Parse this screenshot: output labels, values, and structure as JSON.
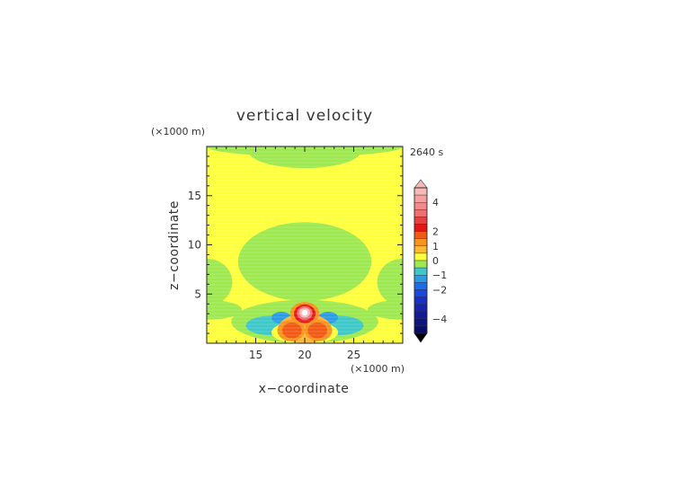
{
  "chart_data": {
    "type": "heatmap",
    "title": "vertical velocity",
    "time_label": "2640 s",
    "xlabel": "x−coordinate",
    "ylabel": "z−coordinate",
    "x_unit": "(×1000 m)",
    "y_unit": "(×1000 m)",
    "xlim": [
      10,
      30
    ],
    "ylim": [
      0,
      20
    ],
    "x_ticks": [
      15,
      20,
      25
    ],
    "y_ticks": [
      5,
      10,
      15
    ],
    "colorbar": {
      "ticks": [
        {
          "value": 4,
          "label": "4"
        },
        {
          "value": 2,
          "label": "2"
        },
        {
          "value": 1,
          "label": "1"
        },
        {
          "value": 0,
          "label": "0"
        },
        {
          "value": -1,
          "label": "−1"
        },
        {
          "value": -2,
          "label": "−2"
        },
        {
          "value": -4,
          "label": "−4"
        }
      ],
      "levels": [
        {
          "lo": 4.5,
          "hi": 5.0,
          "color": "#f7b8b8"
        },
        {
          "lo": 4.0,
          "hi": 4.5,
          "color": "#f4a0a0"
        },
        {
          "lo": 3.5,
          "hi": 4.0,
          "color": "#f28a8a"
        },
        {
          "lo": 3.0,
          "hi": 3.5,
          "color": "#ef7070"
        },
        {
          "lo": 2.5,
          "hi": 3.0,
          "color": "#e84040"
        },
        {
          "lo": 2.0,
          "hi": 2.5,
          "color": "#e21818"
        },
        {
          "lo": 1.5,
          "hi": 2.0,
          "color": "#f05a14"
        },
        {
          "lo": 1.0,
          "hi": 1.5,
          "color": "#f7931e"
        },
        {
          "lo": 0.5,
          "hi": 1.0,
          "color": "#fbb832"
        },
        {
          "lo": 0.0,
          "hi": 0.5,
          "color": "#ffff3c"
        },
        {
          "lo": -0.5,
          "hi": 0.0,
          "color": "#9ee850"
        },
        {
          "lo": -1.0,
          "hi": -0.5,
          "color": "#3ec8c8"
        },
        {
          "lo": -1.5,
          "hi": -1.0,
          "color": "#2a9ce6"
        },
        {
          "lo": -2.0,
          "hi": -1.5,
          "color": "#1c6ee8"
        },
        {
          "lo": -2.5,
          "hi": -2.0,
          "color": "#1848e0"
        },
        {
          "lo": -3.0,
          "hi": -2.5,
          "color": "#1630c8"
        },
        {
          "lo": -3.5,
          "hi": -3.0,
          "color": "#1424b0"
        },
        {
          "lo": -4.0,
          "hi": -3.5,
          "color": "#121a98"
        },
        {
          "lo": -4.5,
          "hi": -4.0,
          "color": "#0e1480"
        },
        {
          "lo": -5.0,
          "hi": -4.5,
          "color": "#0a0e68"
        }
      ],
      "over_color": "#f7b8b8",
      "under_color": "#000000"
    },
    "field_regions": [
      {
        "kind": "background",
        "level": 0.25,
        "color": "#ffff3c"
      },
      {
        "kind": "ellipse",
        "level": -0.25,
        "color": "#9ee850",
        "cx": 20,
        "cy": 20,
        "rx": 10,
        "ry": 1.0,
        "note": "top band"
      },
      {
        "kind": "ellipse",
        "level": -0.25,
        "color": "#9ee850",
        "cx": 20,
        "cy": 19.6,
        "rx": 5.8,
        "ry": 1.8
      },
      {
        "kind": "ellipse",
        "level": -0.25,
        "color": "#9ee850",
        "cx": 20,
        "cy": 8.3,
        "rx": 6.8,
        "ry": 4.0
      },
      {
        "kind": "ellipse",
        "level": -0.25,
        "color": "#9ee850",
        "cx": 10,
        "cy": 6.2,
        "rx": 2.6,
        "ry": 2.4
      },
      {
        "kind": "ellipse",
        "level": -0.25,
        "color": "#9ee850",
        "cx": 30,
        "cy": 6.2,
        "rx": 2.6,
        "ry": 2.4
      },
      {
        "kind": "ellipse",
        "level": -0.25,
        "color": "#9ee850",
        "cx": 10,
        "cy": 3.4,
        "rx": 3.6,
        "ry": 1.0
      },
      {
        "kind": "ellipse",
        "level": -0.25,
        "color": "#9ee850",
        "cx": 30,
        "cy": 3.4,
        "rx": 3.6,
        "ry": 1.0
      },
      {
        "kind": "ellipse",
        "level": -0.25,
        "color": "#9ee850",
        "cx": 20,
        "cy": 2.2,
        "rx": 7.5,
        "ry": 2.2
      },
      {
        "kind": "ellipse",
        "level": -0.75,
        "color": "#3ec8c8",
        "cx": 16.6,
        "cy": 1.8,
        "rx": 2.6,
        "ry": 1.0
      },
      {
        "kind": "ellipse",
        "level": -0.75,
        "color": "#3ec8c8",
        "cx": 23.4,
        "cy": 1.8,
        "rx": 2.6,
        "ry": 1.0
      },
      {
        "kind": "ellipse",
        "level": -1.25,
        "color": "#2a9ce6",
        "cx": 17.6,
        "cy": 2.6,
        "rx": 1.0,
        "ry": 0.6
      },
      {
        "kind": "ellipse",
        "level": -1.25,
        "color": "#2a9ce6",
        "cx": 22.4,
        "cy": 2.6,
        "rx": 1.0,
        "ry": 0.6
      },
      {
        "kind": "ellipse",
        "level": 0.25,
        "color": "#ffff3c",
        "cx": 20,
        "cy": 1.1,
        "rx": 3.4,
        "ry": 1.2
      },
      {
        "kind": "ellipse",
        "level": 0.75,
        "color": "#fbb832",
        "cx": 20,
        "cy": 1.5,
        "rx": 2.7,
        "ry": 1.5
      },
      {
        "kind": "ellipse",
        "level": 1.25,
        "color": "#f7931e",
        "cx": 18.6,
        "cy": 1.3,
        "rx": 1.4,
        "ry": 1.1
      },
      {
        "kind": "ellipse",
        "level": 1.25,
        "color": "#f7931e",
        "cx": 21.4,
        "cy": 1.3,
        "rx": 1.4,
        "ry": 1.1
      },
      {
        "kind": "ellipse",
        "level": 1.75,
        "color": "#f05a14",
        "cx": 18.7,
        "cy": 1.3,
        "rx": 1.0,
        "ry": 0.8
      },
      {
        "kind": "ellipse",
        "level": 1.75,
        "color": "#f05a14",
        "cx": 21.3,
        "cy": 1.3,
        "rx": 1.0,
        "ry": 0.8
      },
      {
        "kind": "ellipse",
        "level": 1.25,
        "color": "#f7931e",
        "cx": 20,
        "cy": 3.0,
        "rx": 1.5,
        "ry": 1.2
      },
      {
        "kind": "ellipse",
        "level": 2.25,
        "color": "#e21818",
        "cx": 20,
        "cy": 3.0,
        "rx": 1.1,
        "ry": 0.95
      },
      {
        "kind": "ellipse",
        "level": 3.25,
        "color": "#ef7070",
        "cx": 20,
        "cy": 3.05,
        "rx": 0.8,
        "ry": 0.7
      },
      {
        "kind": "ellipse",
        "level": 4.75,
        "color": "#f7b8b8",
        "cx": 20,
        "cy": 3.1,
        "rx": 0.55,
        "ry": 0.5
      },
      {
        "kind": "ellipse",
        "level": 5.2,
        "color": "#ffffff",
        "cx": 20,
        "cy": 3.1,
        "rx": 0.3,
        "ry": 0.3
      }
    ]
  }
}
